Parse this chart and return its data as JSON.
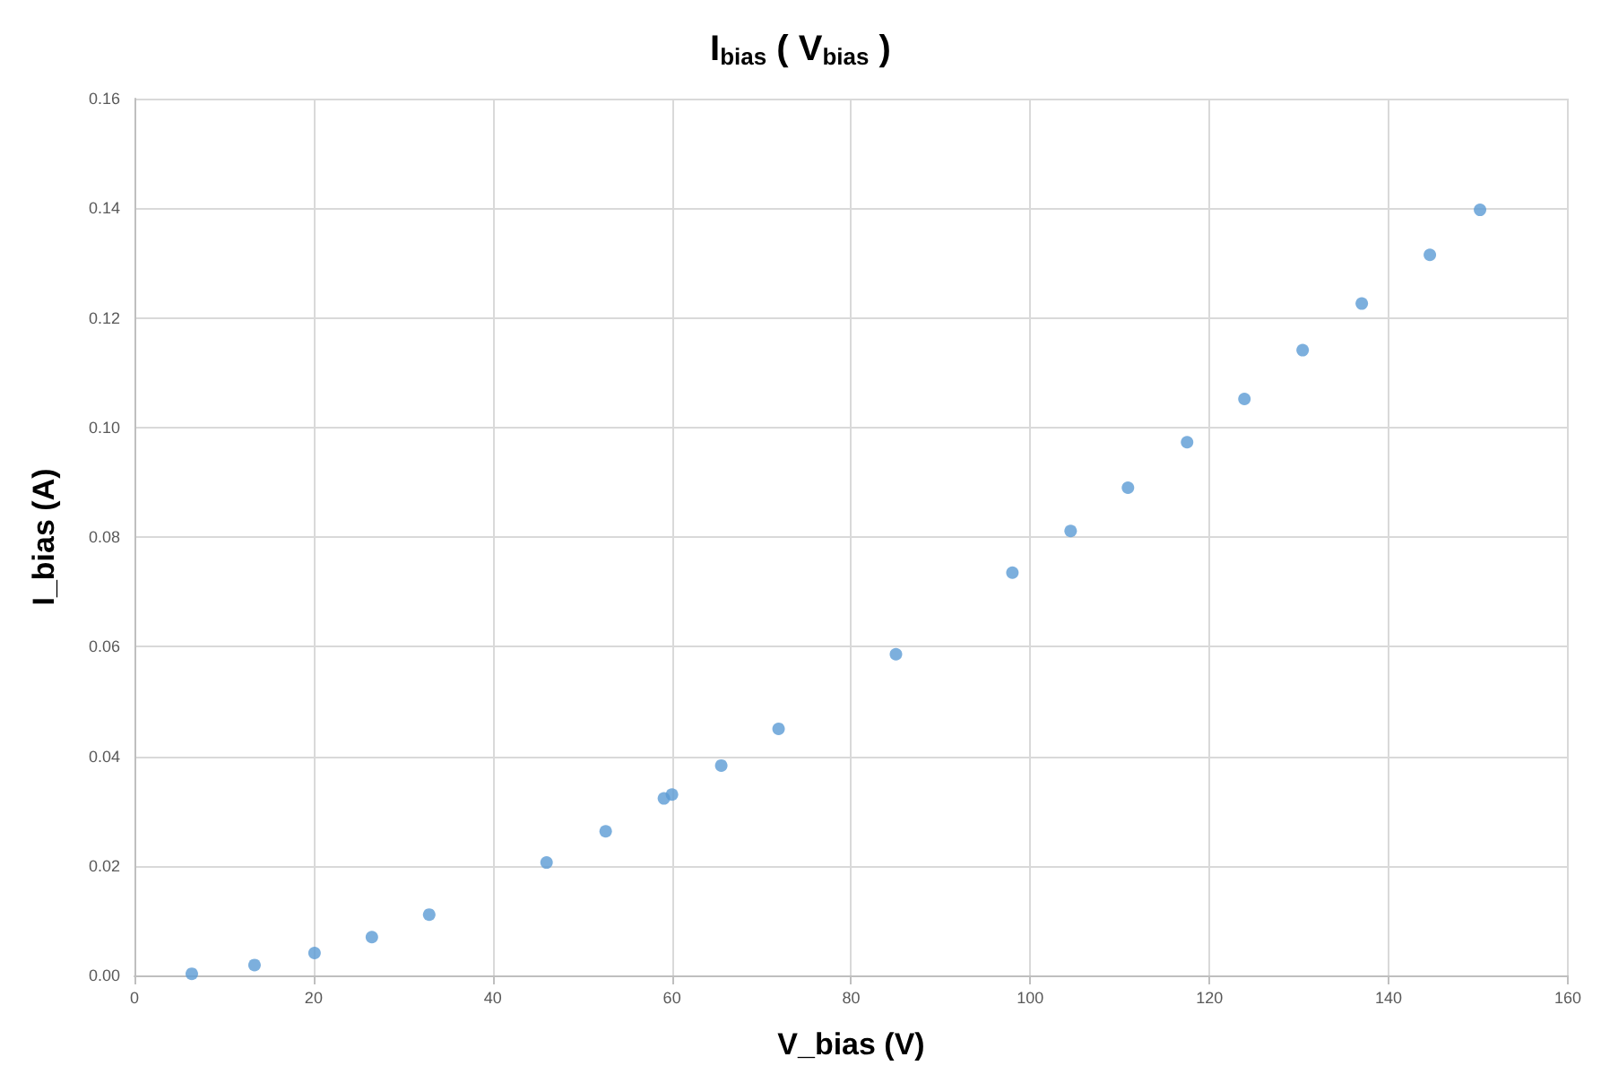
{
  "chart_data": {
    "type": "scatter",
    "title": "I$_{bias}$ ( V$_{bias}$ )",
    "xlabel": "V_bias (V)",
    "ylabel": "I_bias (A)",
    "x": [
      6.4,
      13.4,
      20.1,
      26.5,
      32.9,
      46.0,
      52.6,
      59.1,
      60.0,
      65.5,
      71.9,
      85.0,
      98.0,
      104.5,
      110.9,
      117.5,
      123.9,
      130.4,
      137.0,
      144.6,
      150.2
    ],
    "series": [
      {
        "color": "#5b9bd5",
        "values": [
          0.0003,
          0.0019,
          0.0041,
          0.007,
          0.0111,
          0.0206,
          0.0263,
          0.0323,
          0.033,
          0.0383,
          0.045,
          0.0586,
          0.0735,
          0.0811,
          0.089,
          0.0973,
          0.1052,
          0.1141,
          0.1226,
          0.1315,
          0.1397
        ]
      }
    ],
    "xlim": [
      0,
      160
    ],
    "xticks": [
      0,
      20,
      40,
      60,
      80,
      100,
      120,
      140,
      160
    ],
    "ylim": [
      0,
      0.16
    ],
    "yticks": [
      {
        "value": 0,
        "label": "0.00"
      },
      {
        "value": 0.02,
        "label": "0.02"
      },
      {
        "value": 0.04,
        "label": "0.04"
      },
      {
        "value": 0.06,
        "label": "0.06"
      },
      {
        "value": 0.08,
        "label": "0.08"
      },
      {
        "value": 0.1,
        "label": "0.10"
      },
      {
        "value": 0.12,
        "label": "0.12"
      },
      {
        "value": 0.14,
        "label": "0.14"
      },
      {
        "value": 0.16,
        "label": "0.16"
      }
    ],
    "grid": true,
    "marker": "circle"
  }
}
